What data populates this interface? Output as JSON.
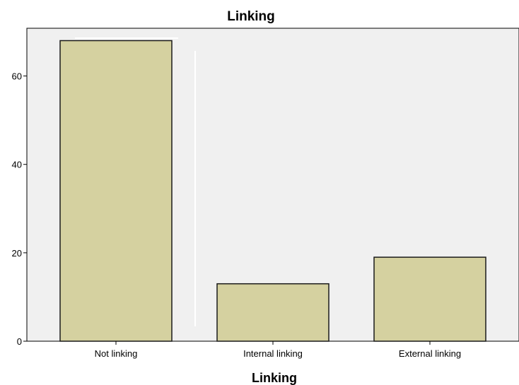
{
  "chart_data": {
    "type": "bar",
    "title": "Linking",
    "xlabel": "Linking",
    "ylabel": "",
    "categories": [
      "Not linking",
      "Internal linking",
      "External linking"
    ],
    "values": [
      68,
      13,
      19
    ],
    "ylim": [
      0,
      70
    ],
    "yticks": [
      0,
      20,
      40,
      60
    ],
    "grid": false,
    "colors": {
      "bar_fill": "#d5d1a0",
      "bar_stroke": "#1a1a1a",
      "plot_background": "#f0f0f0",
      "page_background": "#ffffff"
    }
  }
}
